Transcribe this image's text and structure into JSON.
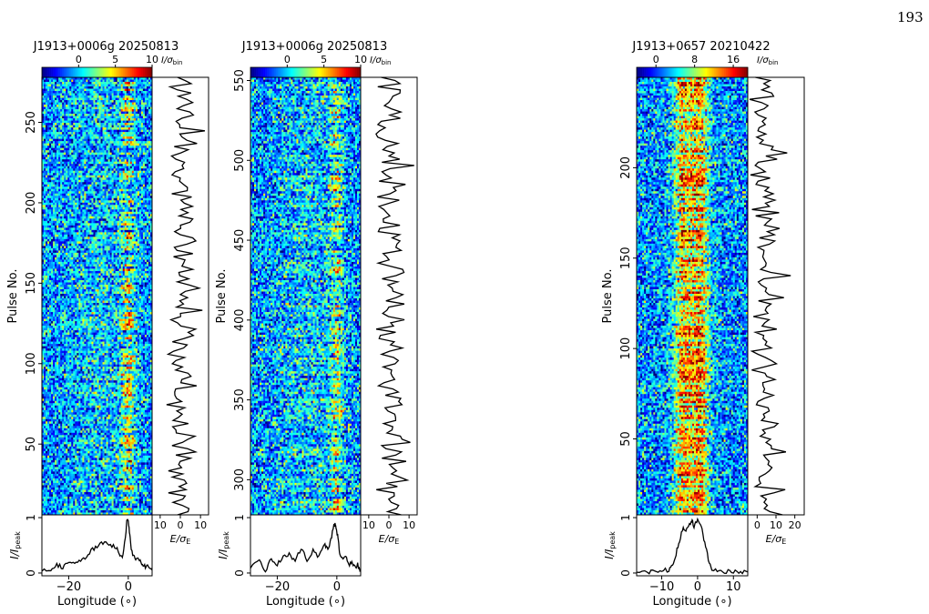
{
  "page_number": "193",
  "colormap": [
    "#00007f",
    "#0000ff",
    "#007fff",
    "#00ffff",
    "#7fff7f",
    "#ffff00",
    "#ff7f00",
    "#ff0000",
    "#7f0000"
  ],
  "axis_text": {
    "ylabel_pulse": "Pulse No.",
    "ylabel_profile_main": "I/I",
    "ylabel_profile_sub": "peak",
    "xlabel_profile": "Longitude (∘)",
    "xlabel_energy_main": "E/σ",
    "xlabel_energy_sub": "E",
    "colorbar_unit_main": "I/σ",
    "colorbar_unit_sub": "bin"
  },
  "chart_data": [
    {
      "type": "heatmap",
      "title": "J1913+0006g  20250813",
      "pulse_range": [
        6,
        278
      ],
      "pulse_ticks": [
        50,
        100,
        150,
        200,
        250
      ],
      "longitude_range": [
        -29,
        8
      ],
      "longitude_ticks": [
        -20,
        0
      ],
      "colorbar_range": [
        -5,
        10
      ],
      "colorbar_ticks": [
        0,
        5,
        10
      ],
      "energy_range": [
        -14,
        14
      ],
      "energy_ticks": [
        -10,
        0,
        10
      ],
      "energy_tick_labels": [
        "10",
        "0",
        "10"
      ],
      "profile_range": [
        -0.05,
        1.05
      ],
      "profile_ticks": [
        0,
        1
      ],
      "profile_x": [
        -29,
        -26,
        -24,
        -22,
        -20,
        -18,
        -16,
        -14,
        -12,
        -10,
        -8,
        -6,
        -4,
        -3,
        -2,
        -1,
        -0.5,
        0,
        0.5,
        1,
        2,
        3,
        4,
        5,
        6,
        7,
        8
      ],
      "profile_y": [
        0.05,
        0.08,
        0.15,
        0.1,
        0.2,
        0.15,
        0.22,
        0.3,
        0.42,
        0.5,
        0.55,
        0.52,
        0.45,
        0.35,
        0.3,
        0.6,
        0.95,
        0.93,
        0.7,
        0.4,
        0.3,
        0.25,
        0.2,
        0.15,
        0.1,
        0.12,
        0.05
      ],
      "pulse_seed": 11,
      "pulse_component_centers": [
        -10,
        0
      ],
      "pulse_component_widths": [
        7,
        1.6
      ],
      "pulse_component_strengths": [
        0.25,
        1.0
      ],
      "mean_intensity": 0.4,
      "nulling_fraction": 0.3
    },
    {
      "type": "heatmap",
      "title": "J1913+0006g  20250813",
      "pulse_range": [
        278,
        552
      ],
      "pulse_ticks": [
        300,
        350,
        400,
        450,
        500,
        550
      ],
      "longitude_range": [
        -29,
        8
      ],
      "longitude_ticks": [
        -20,
        0
      ],
      "colorbar_range": [
        -5,
        10
      ],
      "colorbar_ticks": [
        0,
        5,
        10
      ],
      "energy_range": [
        -14,
        14
      ],
      "energy_ticks": [
        -10,
        0,
        10
      ],
      "energy_tick_labels": [
        "10",
        "0",
        "10"
      ],
      "profile_range": [
        -0.05,
        1.05
      ],
      "profile_ticks": [
        0,
        1
      ],
      "profile_x": [
        -29,
        -26,
        -24,
        -22,
        -20,
        -18,
        -16,
        -14,
        -12,
        -10,
        -8,
        -6,
        -4,
        -3,
        -2,
        -1,
        -0.5,
        0,
        0.5,
        1,
        2,
        3,
        4,
        5,
        6,
        7,
        8
      ],
      "profile_y": [
        0.1,
        0.2,
        0.05,
        0.25,
        0.15,
        0.3,
        0.35,
        0.2,
        0.45,
        0.25,
        0.4,
        0.3,
        0.5,
        0.45,
        0.6,
        0.85,
        0.9,
        0.75,
        0.6,
        0.35,
        0.25,
        0.3,
        0.15,
        0.2,
        0.1,
        0.15,
        0.05
      ],
      "pulse_seed": 23,
      "pulse_component_centers": [
        -10,
        0
      ],
      "pulse_component_widths": [
        7,
        1.6
      ],
      "pulse_component_strengths": [
        0.3,
        0.9
      ],
      "mean_intensity": 0.35,
      "nulling_fraction": 0.3
    },
    {
      "type": "heatmap",
      "title": "J1913+0657  20210422",
      "pulse_range": [
        8,
        250
      ],
      "pulse_ticks": [
        50,
        100,
        150,
        200
      ],
      "longitude_range": [
        -17,
        14
      ],
      "longitude_ticks": [
        -10,
        0,
        10
      ],
      "colorbar_range": [
        -4,
        19
      ],
      "colorbar_ticks": [
        0,
        8,
        16
      ],
      "energy_range": [
        -5,
        25
      ],
      "energy_ticks": [
        0,
        10,
        20
      ],
      "energy_tick_labels": [
        "0",
        "10",
        "20"
      ],
      "profile_range": [
        -0.05,
        1.05
      ],
      "profile_ticks": [
        0,
        1
      ],
      "profile_x": [
        -17,
        -14,
        -12,
        -10,
        -8,
        -7,
        -6,
        -5,
        -4,
        -3,
        -2,
        -1.5,
        -1,
        0,
        1,
        2,
        3,
        4,
        6,
        8,
        10,
        12,
        14
      ],
      "profile_y": [
        0.02,
        0.03,
        0.02,
        0.04,
        0.06,
        0.15,
        0.35,
        0.6,
        0.82,
        0.78,
        0.9,
        0.95,
        0.85,
        0.98,
        0.85,
        0.55,
        0.25,
        0.08,
        0.04,
        0.03,
        0.02,
        0.03,
        0.02
      ],
      "pulse_seed": 37,
      "pulse_component_centers": [
        -4,
        0.5
      ],
      "pulse_component_widths": [
        1.8,
        1.8
      ],
      "pulse_component_strengths": [
        0.9,
        1.0
      ],
      "mean_intensity": 0.55,
      "nulling_fraction": 0.0
    }
  ]
}
